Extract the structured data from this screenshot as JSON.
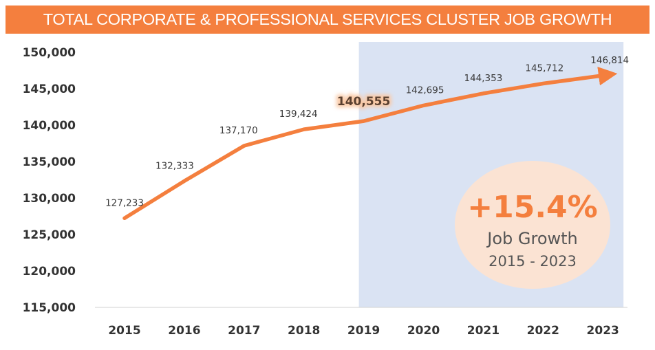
{
  "chart_data": {
    "type": "line",
    "title": "TOTAL CORPORATE & PROFESSIONAL SERVICES CLUSTER JOB GROWTH",
    "categories": [
      "2015",
      "2016",
      "2017",
      "2018",
      "2019",
      "2020",
      "2021",
      "2022",
      "2023"
    ],
    "values": [
      127233,
      132333,
      137170,
      139424,
      140555,
      142695,
      144353,
      145712,
      146814
    ],
    "value_labels": [
      "127,233",
      "132,333",
      "137,170",
      "139,424",
      "140,555",
      "142,695",
      "144,353",
      "145,712",
      "146,814"
    ],
    "highlighted_label_index": 4,
    "ylim": [
      115000,
      150000
    ],
    "yticks": [
      150000,
      145000,
      140000,
      135000,
      130000,
      125000,
      120000,
      115000
    ],
    "ytick_labels": [
      "150,000",
      "145,000",
      "140,000",
      "135,000",
      "130,000",
      "125,000",
      "120,000",
      "115,000"
    ],
    "shaded_range": [
      "2019",
      "2023"
    ],
    "xlabel": "",
    "ylabel": "",
    "callout": {
      "value": "+15.4%",
      "line1": "Job Growth",
      "line2": "2015 - 2023"
    }
  },
  "colors": {
    "banner": "#f47f3e",
    "line": "#f47f3e",
    "shade": "#dae3f3",
    "callout_fill": "#fbe3d3",
    "highlight_glow": "#f9c9a6"
  }
}
